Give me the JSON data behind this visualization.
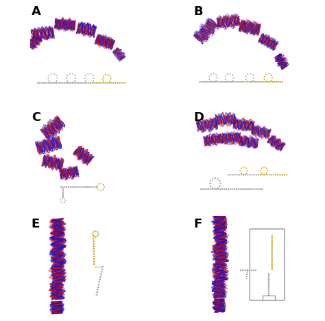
{
  "bg_color": "#ffffff",
  "red": "#cc1111",
  "blue": "#1111cc",
  "gold": "#ccaa22",
  "gray": "#aaaaaa",
  "dark_gray": "#888888",
  "panel_labels": [
    "A",
    "B",
    "C",
    "D",
    "E",
    "F"
  ],
  "label_fontsize": 13
}
